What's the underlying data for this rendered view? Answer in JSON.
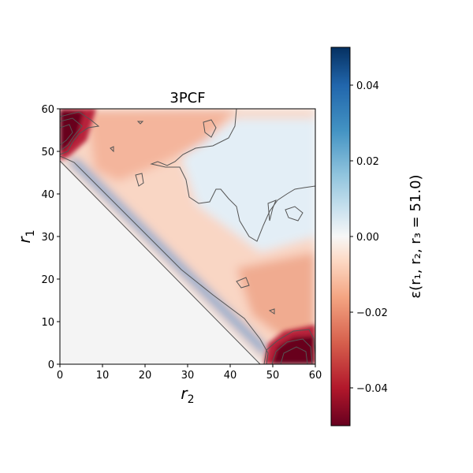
{
  "chart_data": {
    "type": "heatmap",
    "title": "3PCF",
    "xlabel": "r",
    "xlabel_sub": "2",
    "ylabel": "r",
    "ylabel_sub": "1",
    "xlim": [
      0,
      60
    ],
    "ylim": [
      0,
      60
    ],
    "xticks": [
      0,
      10,
      20,
      30,
      40,
      50,
      60
    ],
    "yticks": [
      0,
      10,
      20,
      30,
      40,
      50,
      60
    ],
    "colorbar": {
      "label": "ε(r₁, r₂, r₃ = 51.0)",
      "range": [
        -0.05,
        0.05
      ],
      "ticks": [
        0.04,
        0.02,
        0.0,
        -0.02,
        -0.04
      ],
      "tick_labels": [
        "0.04",
        "0.02",
        "0.00",
        "−0.02",
        "−0.04"
      ],
      "colormap": "RdBu"
    },
    "grid": false,
    "region_note": "values only defined for r1 + r2 > 47 (triangle condition); below diagonal is masked",
    "features": {
      "blue_band_along_diagonal": {
        "from": [
          4,
          46
        ],
        "to": [
          46,
          4
        ],
        "peak_value": 0.02
      },
      "red_corners": [
        {
          "x": 0,
          "y": 55,
          "value": -0.05
        },
        {
          "x": 55,
          "y": 0,
          "value": -0.05
        }
      ],
      "blue_region_upper_right": {
        "x_range": [
          30,
          60
        ],
        "y_range": [
          35,
          60
        ],
        "value": 0.004
      }
    }
  }
}
